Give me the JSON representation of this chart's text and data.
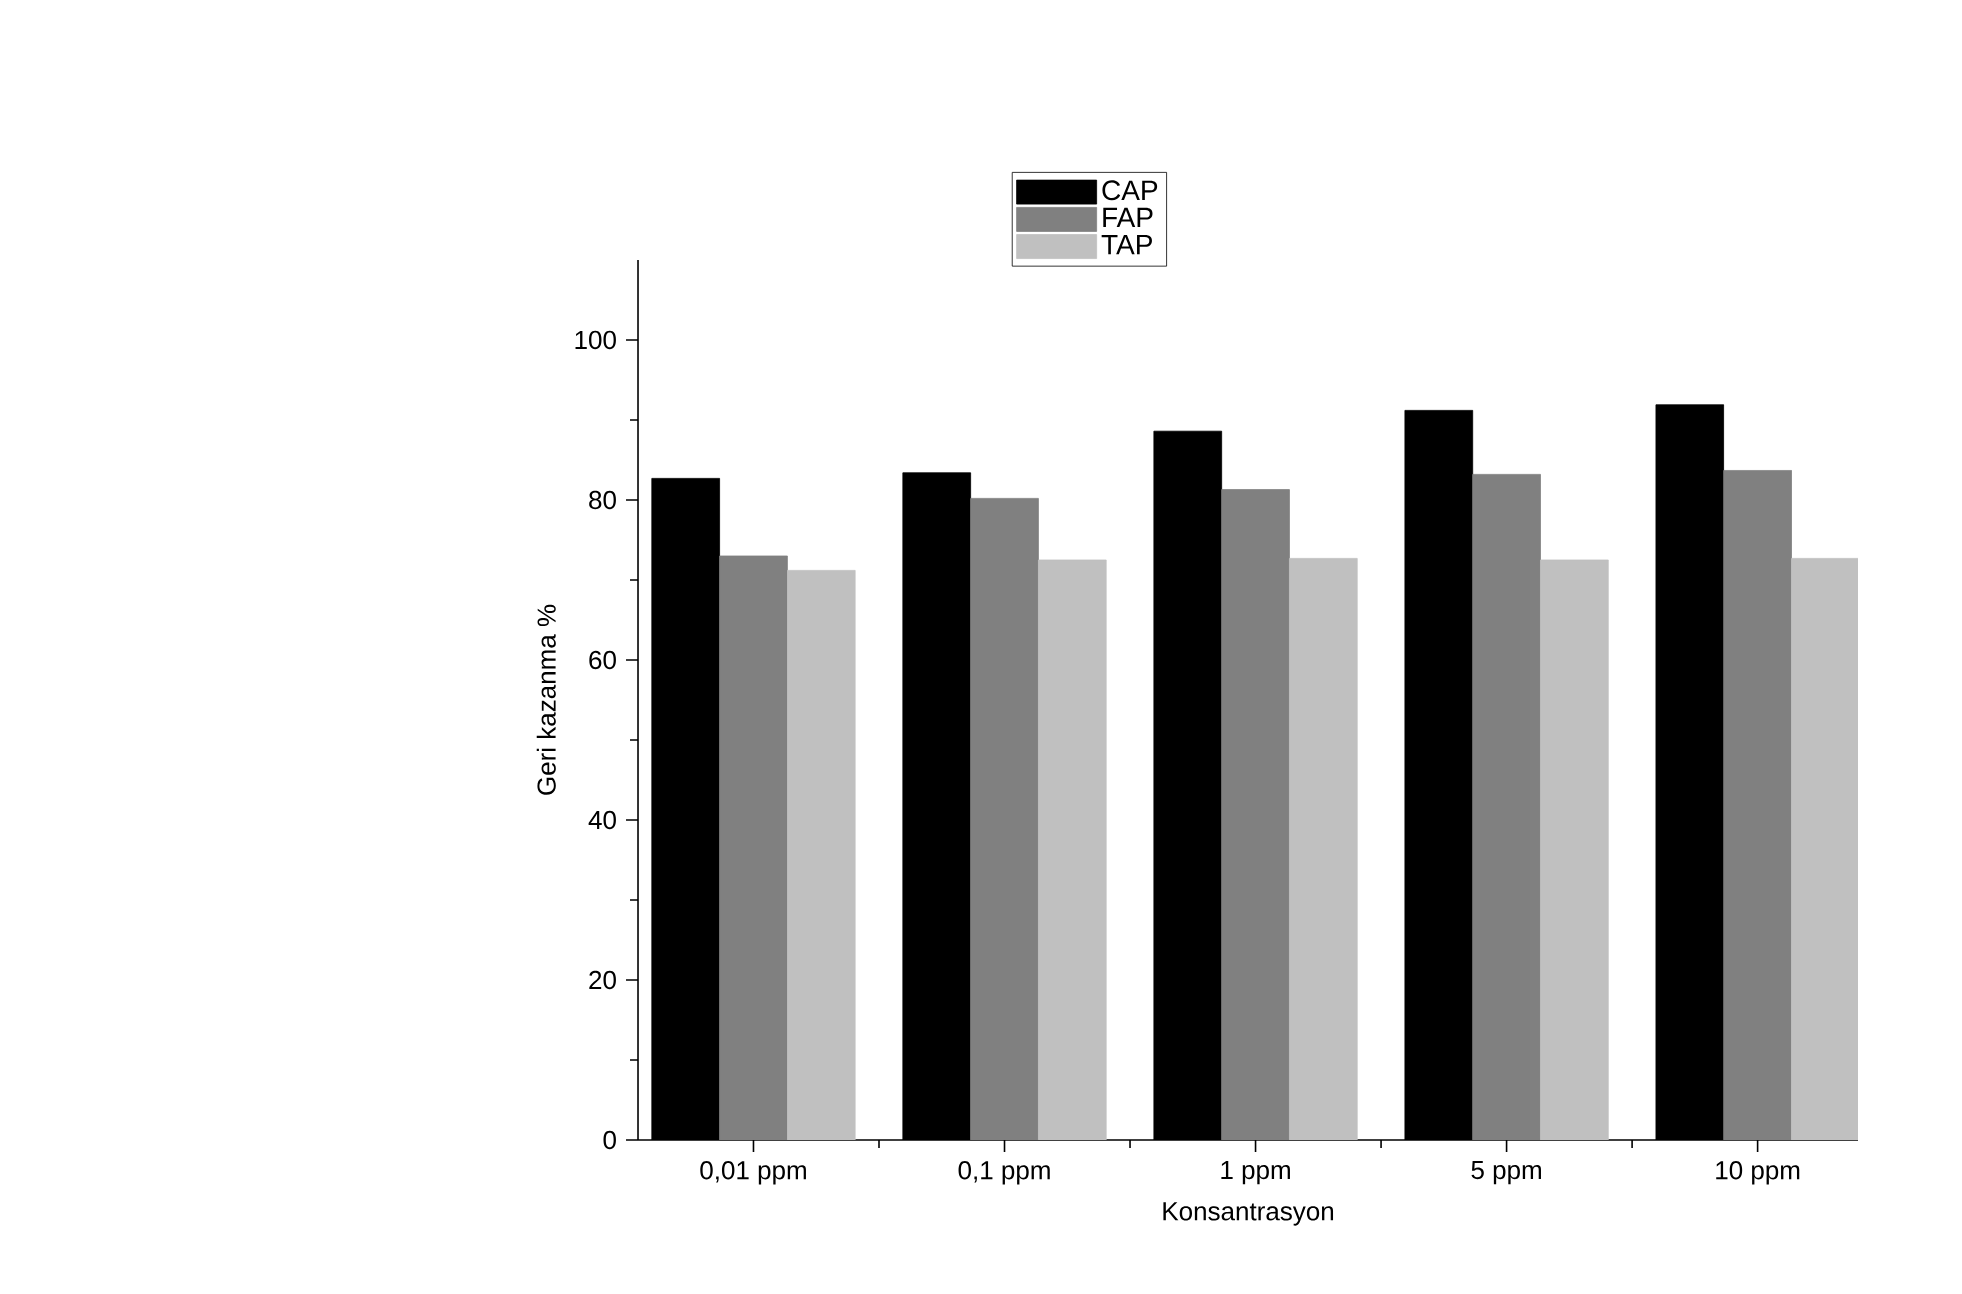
{
  "chart_data": {
    "type": "bar",
    "xlabel": "Konsantrasyon",
    "ylabel": "Geri kazanma %",
    "categories": [
      "0,01 ppm",
      "0,1 ppm",
      "1 ppm",
      "5 ppm",
      "10 ppm"
    ],
    "series": [
      {
        "name": "CAP",
        "color": "#000000",
        "values": [
          82.7,
          83.4,
          88.6,
          91.2,
          91.9
        ]
      },
      {
        "name": "FAP",
        "color": "#808080",
        "values": [
          73.0,
          80.2,
          81.3,
          83.2,
          83.7
        ]
      },
      {
        "name": "TAP",
        "color": "#c0c0c0",
        "values": [
          71.2,
          72.5,
          72.7,
          72.5,
          72.7
        ]
      }
    ],
    "ylim": [
      0,
      110
    ],
    "yticks": [
      0,
      20,
      40,
      60,
      80,
      100
    ],
    "legend": "top",
    "grid": false
  }
}
